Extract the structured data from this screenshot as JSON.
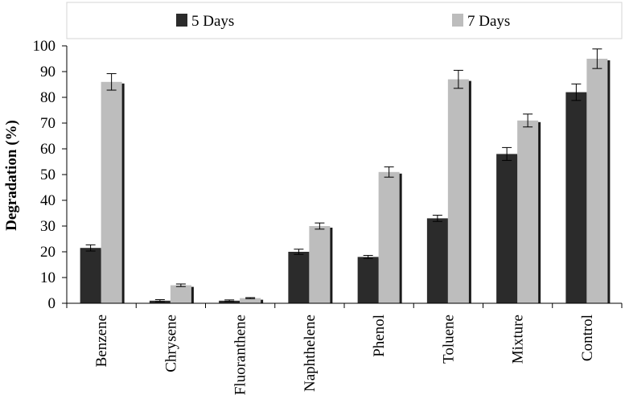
{
  "chart_data": {
    "type": "bar",
    "title": "",
    "xlabel": "",
    "ylabel": "Degradation (%)",
    "ylim": [
      0,
      100
    ],
    "yticks": [
      0,
      10,
      20,
      30,
      40,
      50,
      60,
      70,
      80,
      90,
      100
    ],
    "categories": [
      "Benzene",
      "Chrysene",
      "Fluoranthene",
      "Naphthelene",
      "Phenol",
      "Toluene",
      "Mixture",
      "Control"
    ],
    "series": [
      {
        "name": "5 Days",
        "color": "#2b2b2b",
        "values": [
          21.5,
          1,
          1,
          20,
          18,
          33,
          58,
          82
        ],
        "errors": [
          1.2,
          0.4,
          0.3,
          1.0,
          0.6,
          1.2,
          2.5,
          3.2
        ]
      },
      {
        "name": "7 Days",
        "color": "#bdbdbd",
        "values": [
          86,
          7,
          2,
          30,
          51,
          87,
          71,
          95
        ],
        "errors": [
          3.2,
          0.5,
          0.2,
          1.2,
          2.0,
          3.5,
          2.5,
          3.8
        ]
      }
    ],
    "legend_position": "top"
  }
}
